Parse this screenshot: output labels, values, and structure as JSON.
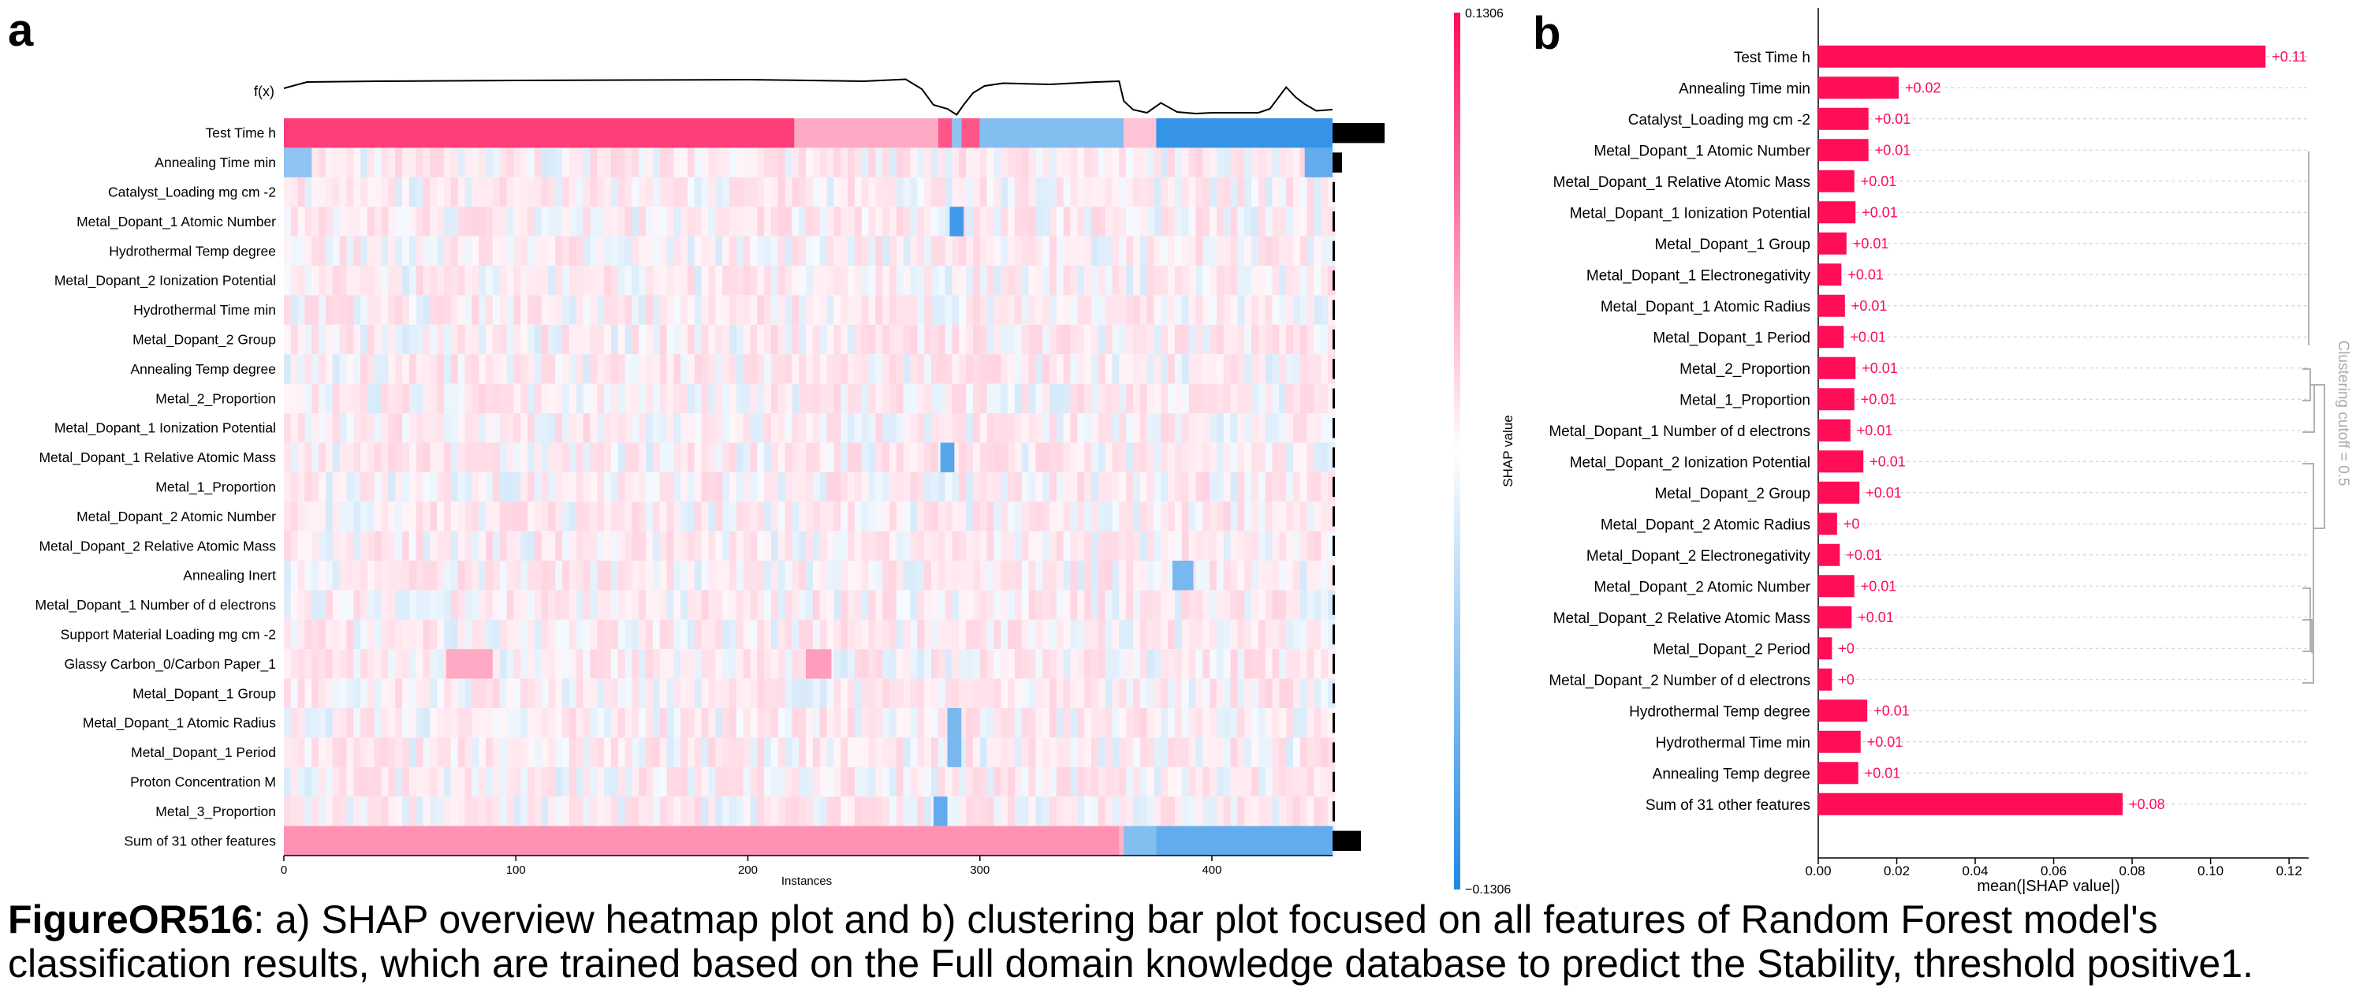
{
  "panel_labels": {
    "a": "a",
    "b": "b"
  },
  "caption": {
    "id": "FigureOR516",
    "text": ": a) SHAP overview heatmap plot and b) clustering bar plot focused on all features of Random Forest model's classification results, which are trained based on the Full domain knowledge database to predict the Stability, threshold positive1."
  },
  "colors": {
    "positive": "#ff0d57",
    "negative": "#1e88e5",
    "neutral": "#ffffff",
    "bar_black": "#000000",
    "fx_line": "#000000"
  },
  "chart_data": [
    {
      "type": "heatmap",
      "fx_label": "f(x)",
      "xlabel": "Instances",
      "xticks": [
        0,
        100,
        200,
        300,
        400
      ],
      "xlim": [
        0,
        452
      ],
      "colorbar": {
        "label": "SHAP value",
        "max_label": "0.1306",
        "min_label": "−0.1306",
        "range": [
          -0.1306,
          0.1306
        ]
      },
      "features": [
        "Test Time h",
        "Annealing Time min",
        "Catalyst_Loading mg cm -2",
        "Metal_Dopant_1 Atomic Number",
        "Hydrothermal Temp degree",
        "Metal_Dopant_2 Ionization Potential",
        "Hydrothermal Time min",
        "Metal_Dopant_2 Group",
        "Annealing Temp degree",
        "Metal_2_Proportion",
        "Metal_Dopant_1 Ionization Potential",
        "Metal_Dopant_1 Relative Atomic Mass",
        "Metal_1_Proportion",
        "Metal_Dopant_2 Atomic Number",
        "Metal_Dopant_2 Relative Atomic Mass",
        "Annealing Inert",
        "Metal_Dopant_1 Number of d electrons",
        "Support Material Loading mg cm -2",
        "Glassy Carbon_0/Carbon Paper_1",
        "Metal_Dopant_1 Group",
        "Metal_Dopant_1 Atomic Radius",
        "Metal_Dopant_1 Period",
        "Proton Concentration M",
        "Metal_3_Proportion",
        "Sum of 31 other features"
      ],
      "importance": [
        0.11,
        0.02,
        0.005,
        0.005,
        0.005,
        0.005,
        0.005,
        0.005,
        0.005,
        0.005,
        0.005,
        0.005,
        0.005,
        0.005,
        0.005,
        0.005,
        0.005,
        0.005,
        0.005,
        0.005,
        0.005,
        0.005,
        0.005,
        0.005,
        0.06
      ],
      "segments": [
        {
          "row": 0,
          "x0": 0,
          "x1": 220,
          "sign": 1,
          "v": 0.8
        },
        {
          "row": 0,
          "x0": 220,
          "x1": 282,
          "sign": 1,
          "v": 0.35
        },
        {
          "row": 0,
          "x0": 282,
          "x1": 288,
          "sign": 1,
          "v": 0.7
        },
        {
          "row": 0,
          "x0": 288,
          "x1": 292,
          "sign": -1,
          "v": 0.5
        },
        {
          "row": 0,
          "x0": 292,
          "x1": 300,
          "sign": 1,
          "v": 0.7
        },
        {
          "row": 0,
          "x0": 300,
          "x1": 362,
          "sign": -1,
          "v": 0.55
        },
        {
          "row": 0,
          "x0": 362,
          "x1": 376,
          "sign": 1,
          "v": 0.25
        },
        {
          "row": 0,
          "x0": 376,
          "x1": 452,
          "sign": -1,
          "v": 0.9
        },
        {
          "row": 1,
          "x0": 0,
          "x1": 12,
          "sign": -1,
          "v": 0.5
        },
        {
          "row": 1,
          "x0": 440,
          "x1": 452,
          "sign": -1,
          "v": 0.7
        },
        {
          "row": 3,
          "x0": 287,
          "x1": 293,
          "sign": -1,
          "v": 0.85
        },
        {
          "row": 11,
          "x0": 283,
          "x1": 289,
          "sign": -1,
          "v": 0.75
        },
        {
          "row": 15,
          "x0": 383,
          "x1": 392,
          "sign": -1,
          "v": 0.6
        },
        {
          "row": 18,
          "x0": 70,
          "x1": 90,
          "sign": 1,
          "v": 0.35
        },
        {
          "row": 18,
          "x0": 225,
          "x1": 236,
          "sign": 1,
          "v": 0.4
        },
        {
          "row": 20,
          "x0": 286,
          "x1": 292,
          "sign": -1,
          "v": 0.6
        },
        {
          "row": 21,
          "x0": 286,
          "x1": 292,
          "sign": -1,
          "v": 0.6
        },
        {
          "row": 23,
          "x0": 280,
          "x1": 286,
          "sign": -1,
          "v": 0.7
        },
        {
          "row": 24,
          "x0": 0,
          "x1": 360,
          "sign": 1,
          "v": 0.45
        },
        {
          "row": 24,
          "x0": 362,
          "x1": 376,
          "sign": -1,
          "v": 0.55
        },
        {
          "row": 24,
          "x0": 376,
          "x1": 452,
          "sign": -1,
          "v": 0.7
        }
      ],
      "fx_curve": [
        [
          0,
          0.72
        ],
        [
          10,
          0.88
        ],
        [
          40,
          0.9
        ],
        [
          100,
          0.92
        ],
        [
          150,
          0.93
        ],
        [
          200,
          0.94
        ],
        [
          250,
          0.9
        ],
        [
          268,
          0.95
        ],
        [
          275,
          0.7
        ],
        [
          280,
          0.3
        ],
        [
          286,
          0.2
        ],
        [
          290,
          0.05
        ],
        [
          293,
          0.3
        ],
        [
          297,
          0.6
        ],
        [
          302,
          0.78
        ],
        [
          310,
          0.85
        ],
        [
          330,
          0.82
        ],
        [
          350,
          0.88
        ],
        [
          360,
          0.9
        ],
        [
          362,
          0.4
        ],
        [
          366,
          0.18
        ],
        [
          372,
          0.1
        ],
        [
          378,
          0.35
        ],
        [
          385,
          0.12
        ],
        [
          393,
          0.08
        ],
        [
          400,
          0.1
        ],
        [
          420,
          0.1
        ],
        [
          425,
          0.2
        ],
        [
          432,
          0.75
        ],
        [
          436,
          0.5
        ],
        [
          440,
          0.32
        ],
        [
          445,
          0.15
        ],
        [
          452,
          0.18
        ]
      ]
    },
    {
      "type": "bar",
      "orientation": "horizontal",
      "xlabel": "mean(|SHAP value|)",
      "xticks": [
        "0.00",
        "0.02",
        "0.04",
        "0.06",
        "0.08",
        "0.10",
        "0.12"
      ],
      "xlim": [
        0,
        0.125
      ],
      "clustering_label": "Clustering cutoff = 0.5",
      "categories": [
        "Test Time h",
        "Annealing Time min",
        "Catalyst_Loading mg cm -2",
        "Metal_Dopant_1 Atomic Number",
        "Metal_Dopant_1 Relative Atomic Mass",
        "Metal_Dopant_1 Ionization Potential",
        "Metal_Dopant_1 Group",
        "Metal_Dopant_1 Electronegativity",
        "Metal_Dopant_1 Atomic Radius",
        "Metal_Dopant_1 Period",
        "Metal_2_Proportion",
        "Metal_1_Proportion",
        "Metal_Dopant_1 Number of d electrons",
        "Metal_Dopant_2 Ionization Potential",
        "Metal_Dopant_2 Group",
        "Metal_Dopant_2 Atomic Radius",
        "Metal_Dopant_2 Electronegativity",
        "Metal_Dopant_2 Atomic Number",
        "Metal_Dopant_2 Relative Atomic Mass",
        "Metal_Dopant_2 Period",
        "Metal_Dopant_2 Number of d electrons",
        "Hydrothermal Temp degree",
        "Hydrothermal Time min",
        "Annealing Temp degree",
        "Sum of 31 other features"
      ],
      "values": [
        0.114,
        0.0205,
        0.0128,
        0.0128,
        0.0092,
        0.0095,
        0.0072,
        0.0059,
        0.0068,
        0.0065,
        0.0095,
        0.0092,
        0.0082,
        0.0115,
        0.0105,
        0.0048,
        0.0055,
        0.0092,
        0.0085,
        0.0035,
        0.0035,
        0.0125,
        0.0108,
        0.0102,
        0.0776
      ],
      "value_labels": [
        "+0.11",
        "+0.02",
        "+0.01",
        "+0.01",
        "+0.01",
        "+0.01",
        "+0.01",
        "+0.01",
        "+0.01",
        "+0.01",
        "+0.01",
        "+0.01",
        "+0.01",
        "+0.01",
        "+0.01",
        "+0",
        "+0.01",
        "+0.01",
        "+0.01",
        "+0",
        "+0",
        "+0.01",
        "+0.01",
        "+0.01",
        "+0.08"
      ]
    }
  ]
}
